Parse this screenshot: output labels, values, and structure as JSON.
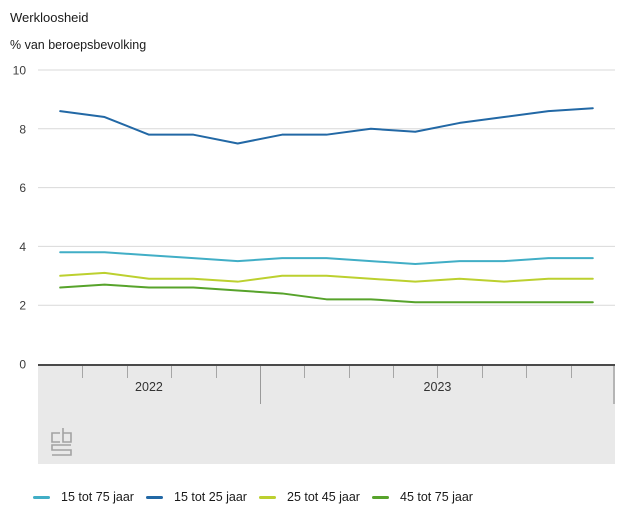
{
  "header": {
    "title": "Werkloosheid",
    "subtitle": "% van beroepsbevolking"
  },
  "y_axis": {
    "tick_labels": [
      "10",
      "8",
      "6",
      "4",
      "2",
      "0"
    ],
    "tick_values": [
      10,
      8,
      6,
      4,
      2,
      0
    ]
  },
  "x_axis": {
    "period_labels": [
      "2022",
      "2023"
    ]
  },
  "branding": {
    "logo_name": "cbs-logo"
  },
  "colors": {
    "grid": "#d9d9d9",
    "axis_band_background": "#e9e9e9",
    "axis_band_border": "#4a4a4a"
  },
  "chart_data": {
    "type": "line",
    "title": "Werkloosheid",
    "ylabel": "% van beroepsbevolking",
    "ylim": [
      0,
      10
    ],
    "grid": true,
    "legend_position": "bottom",
    "x_period_labels": [
      "2022",
      "2023"
    ],
    "points_per_period": [
      5,
      8
    ],
    "n_points": 13,
    "x_note": "monthly points; only year labels 2022 and 2023 are visible on the axis",
    "series": [
      {
        "name": "15 tot 75 jaar",
        "color": "#41aec6",
        "values": [
          3.8,
          3.8,
          3.7,
          3.6,
          3.5,
          3.6,
          3.6,
          3.5,
          3.4,
          3.5,
          3.5,
          3.6,
          3.6
        ]
      },
      {
        "name": "15 tot 25 jaar",
        "color": "#2268a5",
        "values": [
          8.6,
          8.4,
          7.8,
          7.8,
          7.5,
          7.8,
          7.8,
          8.0,
          7.9,
          8.2,
          8.4,
          8.6,
          8.7
        ]
      },
      {
        "name": "25 tot 45 jaar",
        "color": "#bcd02f",
        "values": [
          3.0,
          3.1,
          2.9,
          2.9,
          2.8,
          3.0,
          3.0,
          2.9,
          2.8,
          2.9,
          2.8,
          2.9,
          2.9
        ]
      },
      {
        "name": "45 tot 75 jaar",
        "color": "#57a32b",
        "values": [
          2.6,
          2.7,
          2.6,
          2.6,
          2.5,
          2.4,
          2.2,
          2.2,
          2.1,
          2.1,
          2.1,
          2.1,
          2.1
        ]
      }
    ]
  }
}
